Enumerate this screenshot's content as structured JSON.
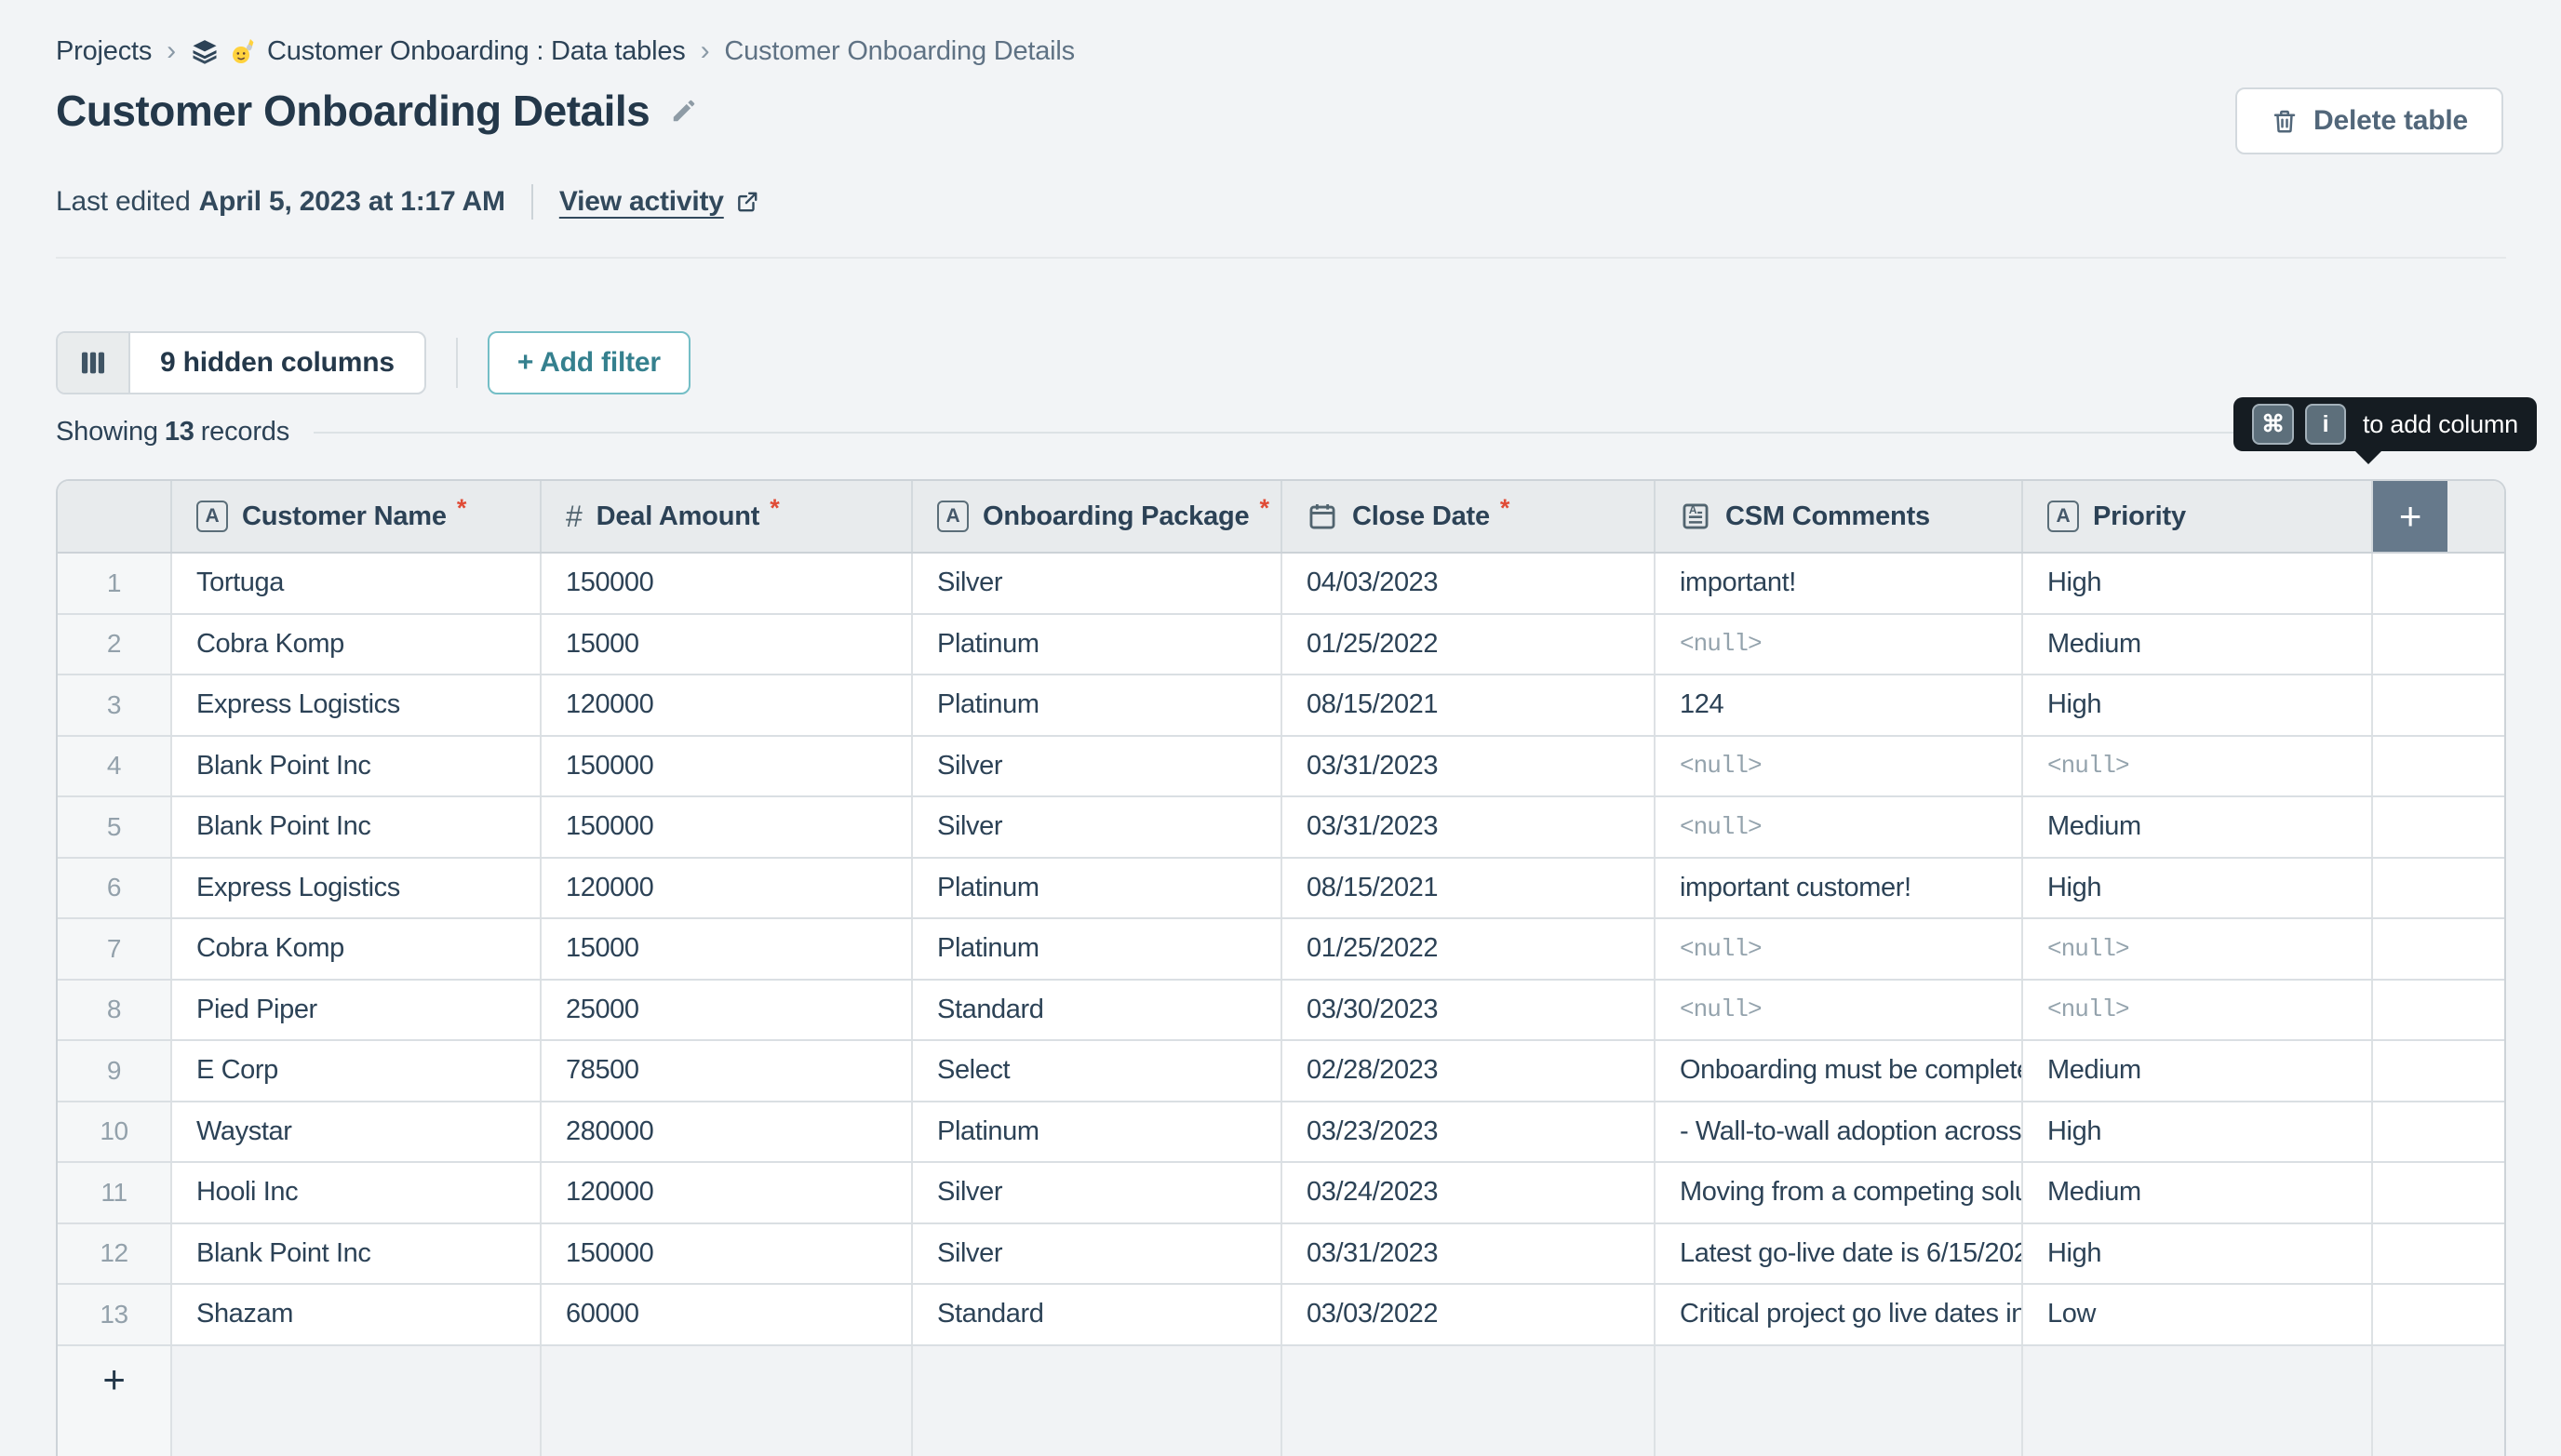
{
  "breadcrumb": {
    "separator": "›",
    "items": [
      {
        "label": "Projects"
      },
      {
        "label": "Customer Onboarding : Data tables",
        "icons": [
          "layers-icon"
        ],
        "emoji": "🙋"
      },
      {
        "label": "Customer Onboarding Details"
      }
    ]
  },
  "header": {
    "title": "Customer Onboarding Details",
    "last_edited_prefix": "Last edited",
    "last_edited_value": "April 5, 2023 at 1:17 AM",
    "view_activity_label": "View activity",
    "delete_table_label": "Delete table"
  },
  "toolbar": {
    "hidden_columns_label": "9 hidden columns",
    "add_filter_label": "+ Add filter"
  },
  "status": {
    "showing_prefix": "Showing",
    "record_count": "13",
    "showing_suffix": "records"
  },
  "tooltip": {
    "keys": [
      "⌘",
      "i"
    ],
    "label": "to add column"
  },
  "table": {
    "add_column_label": "+",
    "add_row_label": "+",
    "null_display": "<null>",
    "columns": [
      {
        "label": "Customer Name",
        "type": "text",
        "required": true
      },
      {
        "label": "Deal Amount",
        "type": "number",
        "required": true
      },
      {
        "label": "Onboarding Package",
        "type": "text",
        "required": true
      },
      {
        "label": "Close Date",
        "type": "date",
        "required": true
      },
      {
        "label": "CSM Comments",
        "type": "richtext",
        "required": false
      },
      {
        "label": "Priority",
        "type": "text",
        "required": false
      }
    ],
    "rows": [
      {
        "num": "1",
        "cells": [
          "Tortuga",
          "150000",
          "Silver",
          "04/03/2023",
          "important!",
          "High"
        ]
      },
      {
        "num": "2",
        "cells": [
          "Cobra Komp",
          "15000",
          "Platinum",
          "01/25/2022",
          null,
          "Medium"
        ]
      },
      {
        "num": "3",
        "cells": [
          "Express Logistics",
          "120000",
          "Platinum",
          "08/15/2021",
          "124",
          "High"
        ]
      },
      {
        "num": "4",
        "cells": [
          "Blank Point Inc",
          "150000",
          "Silver",
          "03/31/2023",
          null,
          null
        ]
      },
      {
        "num": "5",
        "cells": [
          "Blank Point Inc",
          "150000",
          "Silver",
          "03/31/2023",
          null,
          "Medium"
        ]
      },
      {
        "num": "6",
        "cells": [
          "Express Logistics",
          "120000",
          "Platinum",
          "08/15/2021",
          "important customer!",
          "High"
        ]
      },
      {
        "num": "7",
        "cells": [
          "Cobra Komp",
          "15000",
          "Platinum",
          "01/25/2022",
          null,
          null
        ]
      },
      {
        "num": "8",
        "cells": [
          "Pied Piper",
          "25000",
          "Standard",
          "03/30/2023",
          null,
          null
        ]
      },
      {
        "num": "9",
        "cells": [
          "E Corp",
          "78500",
          "Select",
          "02/28/2023",
          "Onboarding must be complete",
          "Medium"
        ]
      },
      {
        "num": "10",
        "cells": [
          "Waystar",
          "280000",
          "Platinum",
          "03/23/2023",
          "- Wall-to-wall adoption across",
          "High"
        ]
      },
      {
        "num": "11",
        "cells": [
          "Hooli Inc",
          "120000",
          "Silver",
          "03/24/2023",
          "Moving from a competing solu",
          "Medium"
        ]
      },
      {
        "num": "12",
        "cells": [
          "Blank Point Inc",
          "150000",
          "Silver",
          "03/31/2023",
          "Latest go-live date is 6/15/202",
          "High"
        ]
      },
      {
        "num": "13",
        "cells": [
          "Shazam",
          "60000",
          "Standard",
          "03/03/2022",
          "Critical project go live dates in",
          "Low"
        ]
      }
    ]
  },
  "colors": {
    "accent_teal": "#35808e",
    "required_red": "#e04b36",
    "dark_navy": "#2c4256",
    "tooltip_bg": "#151c22",
    "header_bg": "#e8ebed",
    "add_column_bg": "#66798b"
  }
}
